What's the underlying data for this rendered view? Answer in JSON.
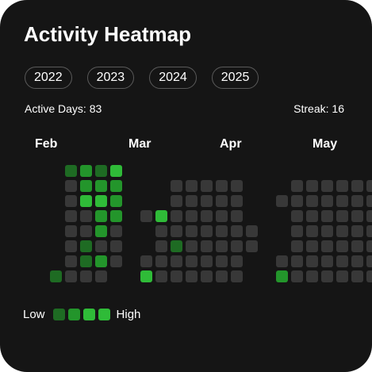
{
  "title": "Activity Heatmap",
  "years": [
    "2022",
    "2023",
    "2024",
    "2025"
  ],
  "stats": {
    "active_days": "Active Days: 83",
    "streak": "Streak: 16"
  },
  "months": [
    "Feb",
    "Mar",
    "Apr",
    "May"
  ],
  "colors": {
    "background": "#151515",
    "empty": "#383838",
    "level1": "#1e6b23",
    "level2": "#23952b",
    "level3": "#2fbb38"
  },
  "legend": {
    "low": "Low",
    "high": "High",
    "levels": [
      "level1",
      "level2",
      "level3",
      "level3"
    ]
  },
  "heatmap": {
    "rows": [
      "...1213...........................",
      "...0222...00000...000000.......000",
      "...0332...00000..0000000......0000",
      "...0022.0300000...0000000.....0000",
      "...0020..0000000..0000000.....0000",
      "...0100..0100000..0000000.....0000",
      "...0120.0000000..00000000.....0001",
      "..1000..3000000..20000000...00010."
    ]
  }
}
